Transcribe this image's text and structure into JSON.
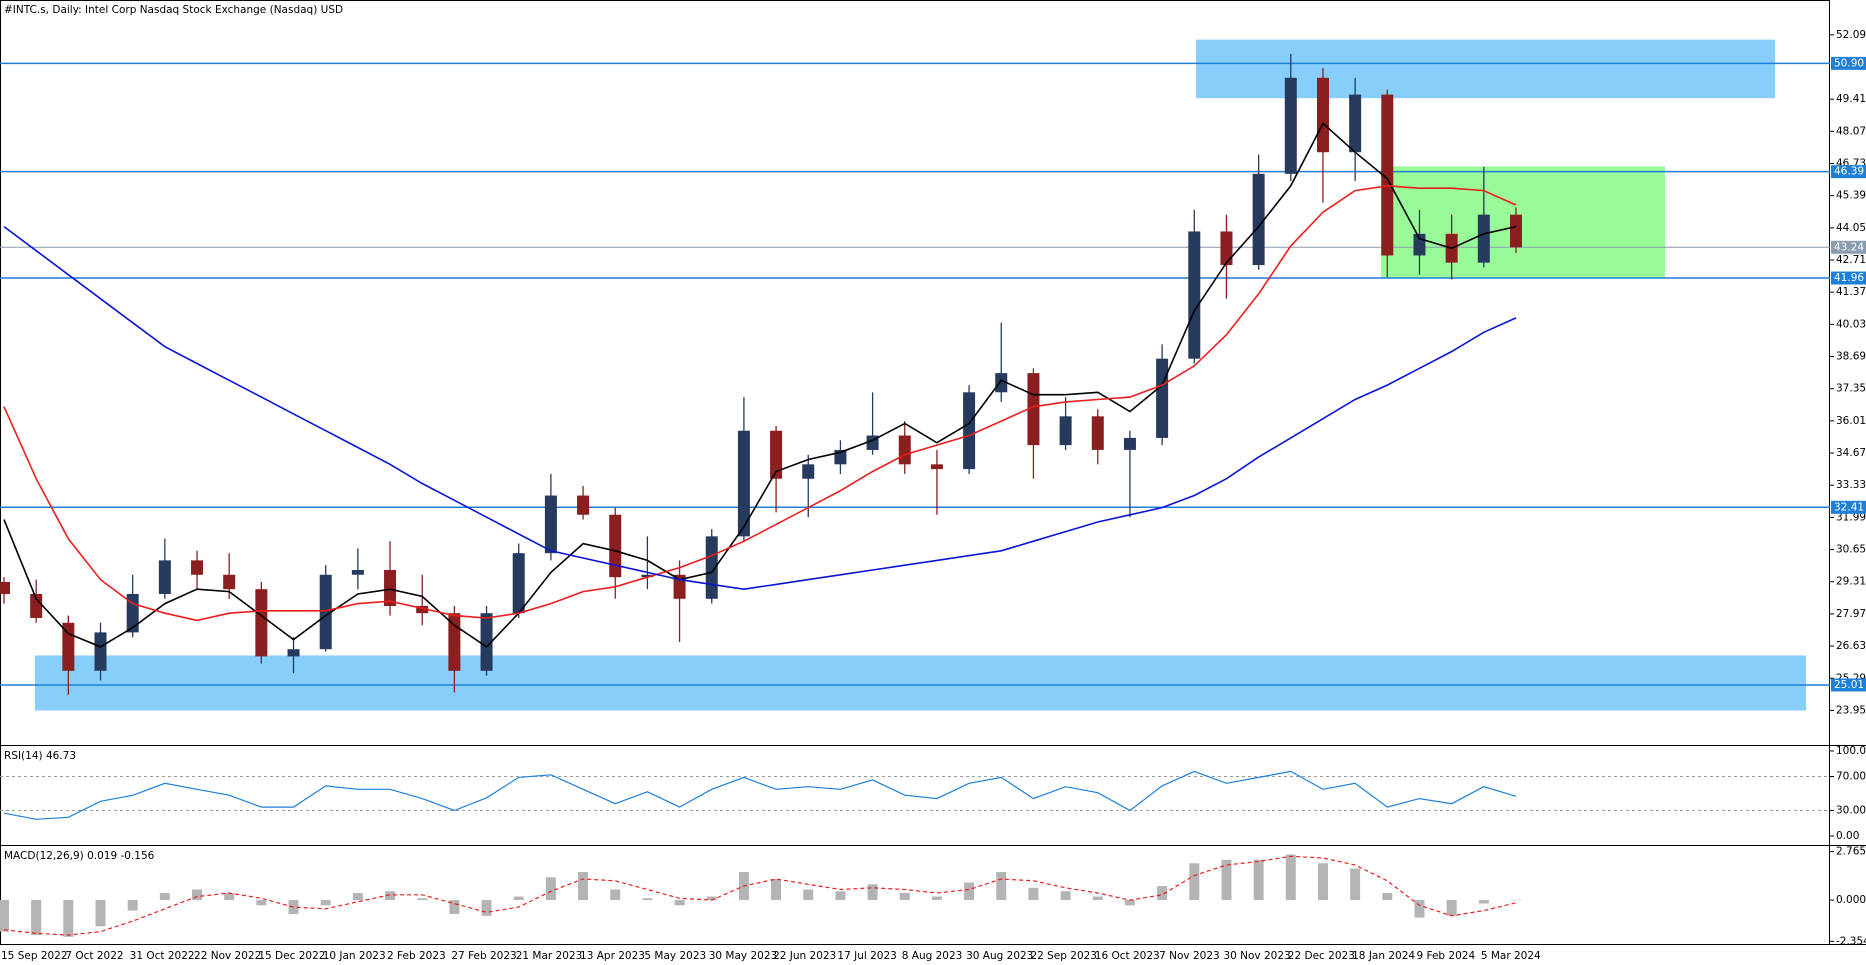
{
  "chart_data": [
    {
      "type": "candlestick",
      "title": "#INTC.s, Daily:  Intel Corp Nasdaq Stock Exchange (Nasdaq) USD",
      "categories": [
        "15 Sep 2022",
        null,
        "7 Oct 2022",
        null,
        "31 Oct 2022",
        null,
        "22 Nov 2022",
        null,
        "15 Dec 2022",
        null,
        "10 Jan 2023",
        null,
        "2 Feb 2023",
        null,
        "27 Feb 2023",
        null,
        "21 Mar 2023",
        null,
        "13 Apr 2023",
        null,
        "5 May 2023",
        null,
        "30 May 2023",
        null,
        "22 Jun 2023",
        null,
        "17 Jul 2023",
        null,
        "8 Aug 2023",
        null,
        "30 Aug 2023",
        null,
        "22 Sep 2023",
        null,
        "16 Oct 2023",
        null,
        "7 Nov 2023",
        null,
        "30 Nov 2023",
        null,
        "22 Dec 2023",
        null,
        "18 Jan 2024",
        null,
        "9 Feb 2024",
        null,
        "5 Mar 2024",
        null
      ],
      "open": [
        29.3,
        28.8,
        27.6,
        25.6,
        27.2,
        28.8,
        30.2,
        29.6,
        29.0,
        26.2,
        26.5,
        29.6,
        29.8,
        28.3,
        28.0,
        25.6,
        28.0,
        30.5,
        32.9,
        32.1,
        29.5,
        29.6,
        28.6,
        31.2,
        35.6,
        33.6,
        34.2,
        34.8,
        35.4,
        34.2,
        34.0,
        37.2,
        38.0,
        35.0,
        36.2,
        34.8,
        35.3,
        38.6,
        43.9,
        42.5,
        46.3,
        50.3,
        47.2,
        49.6,
        42.9,
        43.8,
        42.6,
        44.6
      ],
      "high": [
        29.5,
        29.4,
        27.9,
        27.6,
        29.6,
        31.1,
        30.6,
        30.5,
        29.3,
        27.0,
        30.0,
        30.7,
        31.0,
        29.6,
        28.3,
        28.3,
        30.9,
        33.8,
        33.3,
        32.4,
        31.2,
        30.2,
        31.5,
        37.0,
        35.8,
        34.6,
        35.2,
        37.2,
        36.0,
        34.8,
        37.5,
        40.1,
        38.2,
        37.0,
        36.5,
        35.6,
        39.2,
        44.8,
        44.6,
        47.1,
        51.3,
        50.7,
        50.3,
        49.8,
        44.8,
        44.6,
        46.6,
        44.9
      ],
      "low": [
        28.4,
        27.6,
        24.6,
        25.2,
        27.0,
        28.6,
        29.0,
        28.6,
        25.9,
        25.5,
        26.4,
        29.0,
        27.9,
        27.5,
        24.7,
        25.4,
        27.8,
        30.2,
        31.9,
        28.6,
        29.0,
        26.8,
        28.4,
        31.0,
        32.2,
        32.0,
        33.8,
        34.6,
        33.8,
        32.1,
        33.8,
        36.8,
        33.6,
        34.8,
        34.2,
        32.0,
        35.0,
        38.4,
        41.1,
        42.3,
        46.0,
        45.1,
        46.0,
        42.0,
        42.1,
        41.9,
        42.4,
        43.0
      ],
      "close": [
        28.8,
        27.8,
        25.6,
        27.2,
        28.8,
        30.2,
        29.6,
        29.0,
        26.2,
        26.5,
        29.6,
        29.8,
        28.3,
        28.0,
        25.6,
        28.0,
        30.5,
        32.9,
        32.1,
        29.5,
        29.6,
        28.6,
        31.2,
        35.6,
        33.6,
        34.2,
        34.8,
        35.4,
        34.2,
        34.0,
        37.2,
        38.0,
        35.0,
        36.2,
        34.8,
        35.3,
        38.6,
        43.9,
        42.5,
        46.3,
        50.3,
        47.2,
        49.6,
        42.9,
        43.8,
        42.6,
        44.6,
        43.24
      ],
      "up_color": "#263a5e",
      "down_color": "#8b1e1e",
      "series": [
        {
          "color": "#000000",
          "values": [
            31.9,
            28.6,
            27.15,
            26.6,
            27.4,
            28.4,
            29.0,
            28.9,
            27.9,
            26.9,
            27.9,
            28.8,
            29.0,
            28.7,
            27.5,
            26.6,
            28.0,
            29.7,
            30.9,
            30.6,
            30.2,
            29.4,
            29.7,
            31.6,
            33.9,
            34.4,
            34.7,
            35.2,
            35.9,
            35.1,
            35.9,
            37.7,
            37.1,
            37.1,
            37.2,
            36.4,
            37.5,
            40.6,
            42.6,
            44.1,
            45.8,
            48.4,
            47.2,
            46.1,
            43.6,
            43.2,
            43.8,
            44.1
          ]
        },
        {
          "color": "#ee1c1c",
          "values": [
            36.6,
            33.6,
            31.1,
            29.4,
            28.4,
            28.0,
            27.7,
            28.0,
            28.1,
            28.1,
            28.1,
            28.4,
            28.5,
            28.2,
            27.9,
            27.8,
            28.0,
            28.4,
            28.9,
            29.1,
            29.5,
            29.9,
            30.4,
            31.0,
            31.7,
            32.4,
            33.1,
            33.9,
            34.6,
            35.0,
            35.4,
            36.0,
            36.6,
            36.8,
            36.9,
            37.0,
            37.5,
            38.3,
            39.6,
            41.3,
            43.3,
            44.7,
            45.6,
            45.8,
            45.7,
            45.7,
            45.6,
            45.0
          ]
        },
        {
          "color": "#0a14d8",
          "values": [
            44.1,
            43.1,
            42.1,
            41.1,
            40.1,
            39.1,
            38.4,
            37.7,
            37.0,
            36.3,
            35.6,
            34.9,
            34.2,
            33.4,
            32.7,
            32.0,
            31.3,
            30.6,
            30.3,
            30.0,
            29.7,
            29.4,
            29.2,
            29.0,
            29.2,
            29.4,
            29.6,
            29.8,
            30.0,
            30.2,
            30.4,
            30.6,
            31.0,
            31.4,
            31.8,
            32.1,
            32.4,
            32.9,
            33.6,
            34.5,
            35.3,
            36.1,
            36.9,
            37.5,
            38.2,
            38.9,
            39.7,
            40.3
          ]
        }
      ],
      "levels": [
        {
          "value": 50.9,
          "label": "50.90"
        },
        46.39,
        41.96,
        32.41,
        25.01
      ],
      "level_color": "#1e7fd8",
      "last_price_color": "#8a9bb0",
      "zones": [
        {
          "low": 49.45,
          "high": 51.89,
          "color": "#87cefa"
        },
        {
          "low": 23.95,
          "high": 26.24,
          "color": "#87cefa"
        },
        {
          "low": 41.98,
          "high": 46.61,
          "color": "#98fb98"
        }
      ],
      "ylim": [
        22.51,
        53.54
      ],
      "yticks": [
        52.09,
        49.41,
        48.07,
        46.73,
        45.39,
        44.05,
        42.71,
        41.37,
        40.03,
        38.69,
        37.35,
        36.01,
        34.67,
        33.33,
        31.99,
        30.65,
        29.31,
        27.97,
        26.63,
        25.29,
        23.95
      ]
    },
    {
      "type": "line",
      "title": "RSI(14) 46.73",
      "color": "#1e7fd8",
      "values": [
        26.8,
        19.7,
        22,
        40.8,
        47.9,
        62,
        55,
        48,
        34,
        34,
        59,
        55,
        55,
        44,
        30,
        45,
        69,
        72,
        55,
        38,
        52,
        34,
        55,
        69,
        55,
        58,
        55,
        66,
        48,
        44,
        62,
        69,
        44,
        58,
        51,
        30,
        59,
        76,
        62,
        69,
        76,
        55,
        62,
        34,
        44,
        38,
        58,
        46.73
      ],
      "ylim": [
        -10.6,
        105.9
      ],
      "yticks": [
        {
          "value": 100,
          "label": "100.00"
        },
        {
          "value": 70,
          "label": "70.00"
        },
        {
          "value": 30,
          "label": "30.00"
        },
        {
          "value": 0,
          "label": "0.00"
        }
      ]
    },
    {
      "type": "bar",
      "title": "MACD(12,26,9) 0.019 -0.156",
      "color": "#b4b4b4",
      "values": [
        -1.8,
        -2.0,
        -2.1,
        -1.5,
        -0.6,
        0.4,
        0.6,
        0.4,
        -0.3,
        -0.8,
        -0.3,
        0.4,
        0.5,
        0.1,
        -0.8,
        -0.9,
        0.2,
        1.3,
        1.6,
        0.6,
        0.1,
        -0.3,
        0.2,
        1.6,
        1.2,
        0.6,
        0.5,
        0.9,
        0.4,
        0.2,
        1.0,
        1.6,
        0.7,
        0.5,
        0.2,
        -0.3,
        0.8,
        2.1,
        2.3,
        2.3,
        2.6,
        2.1,
        1.8,
        0.4,
        -1.0,
        -0.9,
        -0.2,
        0.019
      ],
      "series": [
        {
          "color": "#ee1c1c",
          "values": [
            -1.7,
            -1.9,
            -2.0,
            -1.8,
            -1.2,
            -0.5,
            0.2,
            0.4,
            0.1,
            -0.4,
            -0.5,
            -0.1,
            0.3,
            0.3,
            -0.2,
            -0.7,
            -0.4,
            0.5,
            1.2,
            1.1,
            0.6,
            0.1,
            0.0,
            0.8,
            1.2,
            0.9,
            0.6,
            0.7,
            0.6,
            0.4,
            0.6,
            1.2,
            1.1,
            0.7,
            0.4,
            0.0,
            0.3,
            1.4,
            2.0,
            2.2,
            2.5,
            2.4,
            2.0,
            1.1,
            -0.3,
            -0.9,
            -0.6,
            -0.156
          ]
        }
      ],
      "ylim": [
        -2.565,
        3.085
      ],
      "yticks": [
        2.765,
        {
          "value": 0,
          "label": "0.000"
        },
        -2.354
      ]
    }
  ]
}
